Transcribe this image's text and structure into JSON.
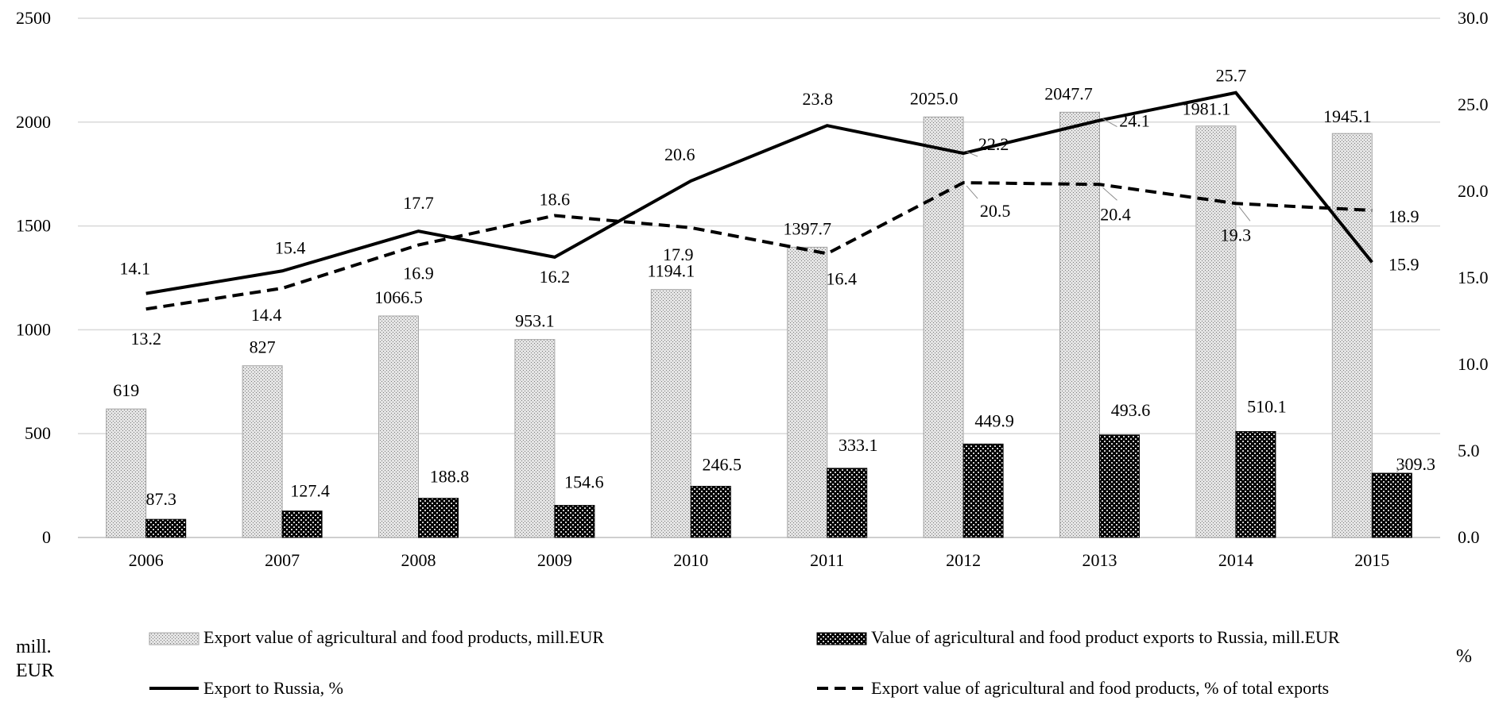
{
  "chart_data": {
    "type": "bar",
    "categories": [
      "2006",
      "2007",
      "2008",
      "2009",
      "2010",
      "2011",
      "2012",
      "2013",
      "2014",
      "2015"
    ],
    "y_left": {
      "label": "mill. EUR",
      "ylim": [
        0,
        2500
      ],
      "ticks": [
        "0",
        "500",
        "1000",
        "1500",
        "2000",
        "2500"
      ]
    },
    "y_right": {
      "label": "%",
      "ylim": [
        0,
        30
      ],
      "ticks": [
        "0.0",
        "5.0",
        "10.0",
        "15.0",
        "20.0",
        "25.0",
        "30.0"
      ]
    },
    "grid": true,
    "legend_position": "bottom",
    "series": [
      {
        "name": "Export value of agricultural and food products, mill.EUR",
        "kind": "bar",
        "axis": "left",
        "pattern": "light-dots",
        "values": [
          619,
          827,
          1066.5,
          953.1,
          1194.1,
          1397.7,
          2025.0,
          2047.7,
          1981.1,
          1945.1
        ],
        "labels": [
          "619",
          "827",
          "1066.5",
          "953.1",
          "1194.1",
          "1397.7",
          "2025.0",
          "2047.7",
          "1981.1",
          "1945.1"
        ]
      },
      {
        "name": "Value of agricultural and food product exports to Russia, mill.EUR",
        "kind": "bar",
        "axis": "left",
        "pattern": "dark-checker",
        "values": [
          87.3,
          127.4,
          188.8,
          154.6,
          246.5,
          333.1,
          449.9,
          493.6,
          510.1,
          309.3
        ],
        "labels": [
          "87.3",
          "127.4",
          "188.8",
          "154.6",
          "246.5",
          "333.1",
          "449.9",
          "493.6",
          "510.1",
          "309.3"
        ]
      },
      {
        "name": "Export to Russia, %",
        "kind": "line",
        "axis": "right",
        "style": "solid",
        "values": [
          14.1,
          15.4,
          17.7,
          16.2,
          20.6,
          23.8,
          22.2,
          24.1,
          25.7,
          15.9
        ],
        "labels": [
          "14.1",
          "15.4",
          "17.7",
          "16.2",
          "20.6",
          "23.8",
          "22.2",
          "24.1",
          "25.7",
          "15.9"
        ]
      },
      {
        "name": "Export value of agricultural and food products, % of total exports",
        "kind": "line",
        "axis": "right",
        "style": "dashed",
        "values": [
          13.2,
          14.4,
          16.9,
          18.6,
          17.9,
          16.4,
          20.5,
          20.4,
          19.3,
          18.9
        ],
        "labels": [
          "13.2",
          "14.4",
          "16.9",
          "18.6",
          "17.9",
          "16.4",
          "20.5",
          "20.4",
          "19.3",
          "18.9"
        ]
      }
    ]
  }
}
